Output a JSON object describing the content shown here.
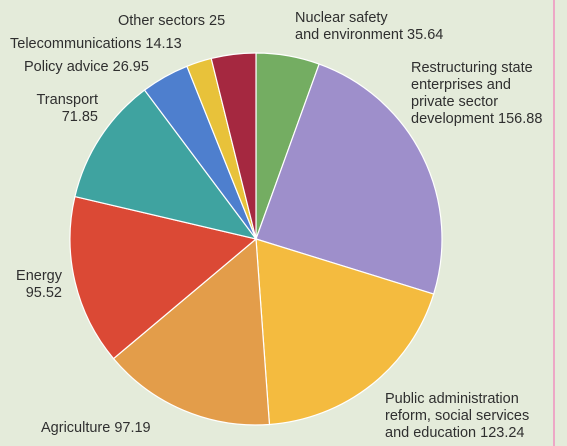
{
  "chart_data": {
    "type": "pie",
    "start": "12 o'clock",
    "direction": "clockwise",
    "slices": [
      {
        "label": "Nuclear safety and environment",
        "value": 35.64,
        "value_text": "35.64",
        "color": "#74ad62"
      },
      {
        "label": "Restructuring state enterprises and private sector development",
        "value": 156.88,
        "value_text": "156.88",
        "color": "#9e8fcb"
      },
      {
        "label": "Public administration reform, social services and education",
        "value": 123.24,
        "value_text": "123.24",
        "color": "#f4bb3f"
      },
      {
        "label": "Agriculture",
        "value": 97.19,
        "value_text": "97.19",
        "color": "#e39d4a"
      },
      {
        "label": "Energy",
        "value": 95.52,
        "value_text": "95.52",
        "color": "#db4935"
      },
      {
        "label": "Transport",
        "value": 71.85,
        "value_text": "71.85",
        "color": "#3fa3a0"
      },
      {
        "label": "Policy advice",
        "value": 26.95,
        "value_text": "26.95",
        "color": "#4e7fce"
      },
      {
        "label": "Telecommunications",
        "value": 14.13,
        "value_text": "14.13",
        "color": "#e8c23a"
      },
      {
        "label": "Other sectors",
        "value": 25,
        "value_text": "25",
        "color": "#a52840"
      }
    ]
  },
  "labels": {
    "nuclear": "Nuclear safety\nand environment 35.64",
    "restructuring": "Restructuring state\nenterprises and\nprivate sector\ndevelopment 156.88",
    "public": "Public administration\nreform, social services\nand education 123.24",
    "agriculture": "Agriculture 97.19",
    "energy": "Energy\n95.52",
    "transport": "Transport\n71.85",
    "policy": "Policy advice 26.95",
    "telecom": "Telecommunications 14.13",
    "other": "Other sectors 25"
  }
}
